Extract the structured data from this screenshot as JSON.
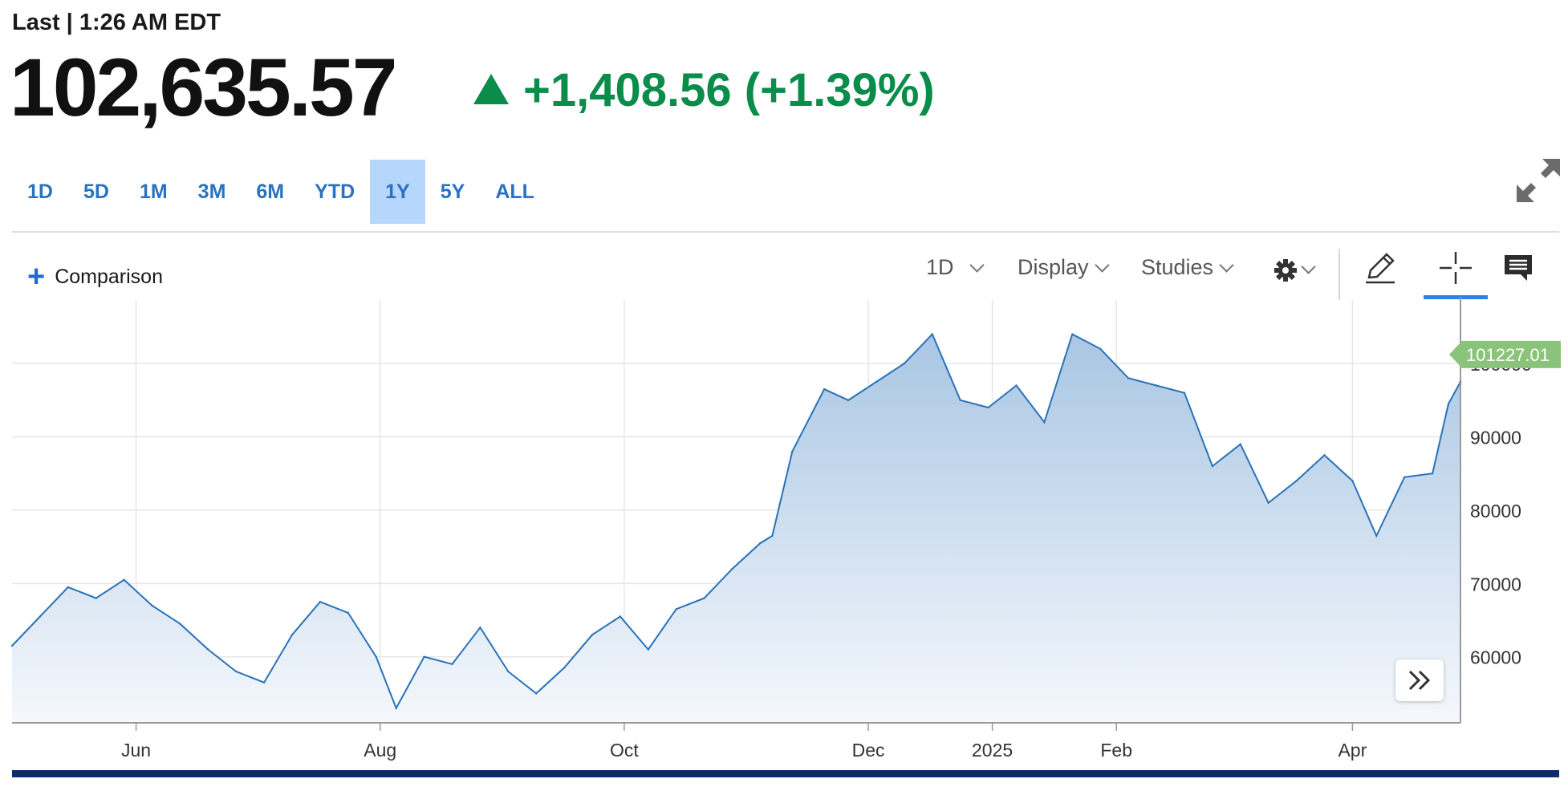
{
  "header": {
    "last_label": "Last | 1:26 AM EDT",
    "price": "102,635.57",
    "change": "+1,408.56 (+1.39%)",
    "change_color": "#0a8c4a"
  },
  "ranges": [
    {
      "label": "1D",
      "active": false
    },
    {
      "label": "5D",
      "active": false
    },
    {
      "label": "1M",
      "active": false
    },
    {
      "label": "3M",
      "active": false
    },
    {
      "label": "6M",
      "active": false
    },
    {
      "label": "YTD",
      "active": false
    },
    {
      "label": "1Y",
      "active": true
    },
    {
      "label": "5Y",
      "active": false
    },
    {
      "label": "ALL",
      "active": false
    }
  ],
  "toolbar": {
    "comparison_label": "Comparison",
    "interval_label": "1D",
    "display_label": "Display",
    "studies_label": "Studies",
    "icons": [
      "plus-icon",
      "gear-icon",
      "pencil-icon",
      "crosshair-icon",
      "comment-icon",
      "expand-icon",
      "double-chevron-right-icon"
    ],
    "accent_color": "#2f7fe8"
  },
  "chart_data": {
    "type": "area",
    "x": [
      "2024-05-01",
      "2024-05-08",
      "2024-05-15",
      "2024-05-22",
      "2024-05-29",
      "2024-06-05",
      "2024-06-12",
      "2024-06-19",
      "2024-06-26",
      "2024-07-03",
      "2024-07-10",
      "2024-07-17",
      "2024-07-24",
      "2024-07-31",
      "2024-08-05",
      "2024-08-12",
      "2024-08-19",
      "2024-08-26",
      "2024-09-02",
      "2024-09-09",
      "2024-09-16",
      "2024-09-23",
      "2024-09-30",
      "2024-10-07",
      "2024-10-14",
      "2024-10-21",
      "2024-10-28",
      "2024-11-04",
      "2024-11-07",
      "2024-11-12",
      "2024-11-20",
      "2024-11-26",
      "2024-12-03",
      "2024-12-10",
      "2024-12-17",
      "2024-12-24",
      "2024-12-31",
      "2025-01-07",
      "2025-01-14",
      "2025-01-21",
      "2025-01-28",
      "2025-02-04",
      "2025-02-11",
      "2025-02-18",
      "2025-02-25",
      "2025-03-04",
      "2025-03-11",
      "2025-03-18",
      "2025-03-25",
      "2025-04-01",
      "2025-04-07",
      "2025-04-14",
      "2025-04-21",
      "2025-04-25",
      "2025-04-28"
    ],
    "values": [
      61500,
      65500,
      69500,
      68000,
      70500,
      67000,
      64500,
      61000,
      58000,
      56500,
      63000,
      67500,
      66000,
      60000,
      53000,
      60000,
      59000,
      64000,
      58000,
      55000,
      58500,
      63000,
      65500,
      61000,
      66500,
      68000,
      72000,
      75500,
      76500,
      88000,
      96500,
      95000,
      97500,
      100000,
      104000,
      95000,
      94000,
      97000,
      92000,
      104000,
      102000,
      98000,
      97000,
      96000,
      86000,
      89000,
      81000,
      84000,
      87500,
      84000,
      76500,
      84500,
      85000,
      94500,
      97500
    ],
    "latest_value_label": "101227.01",
    "ylim": [
      51000,
      108000
    ],
    "y_ticks": [
      60000,
      70000,
      80000,
      90000,
      100000
    ],
    "x_ticks": [
      {
        "date": "2024-06-01",
        "label": "Jun"
      },
      {
        "date": "2024-08-01",
        "label": "Aug"
      },
      {
        "date": "2024-10-01",
        "label": "Oct"
      },
      {
        "date": "2024-12-01",
        "label": "Dec"
      },
      {
        "date": "2025-01-01",
        "label": "2025"
      },
      {
        "date": "2025-02-01",
        "label": "Feb"
      },
      {
        "date": "2025-04-01",
        "label": "Apr"
      }
    ],
    "grid": true,
    "line_color": "#2a72b8",
    "fill_top_color": "#a9c6e3",
    "fill_bottom_color": "#f5f8fc",
    "latest_badge_color": "#8ac47a"
  }
}
